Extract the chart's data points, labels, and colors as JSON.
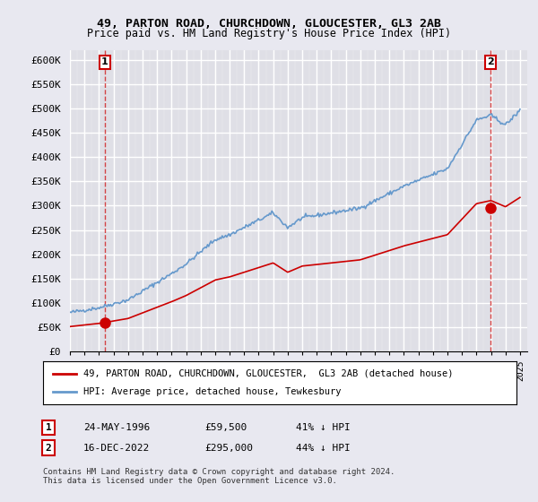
{
  "title1": "49, PARTON ROAD, CHURCHDOWN, GLOUCESTER, GL3 2AB",
  "title2": "Price paid vs. HM Land Registry's House Price Index (HPI)",
  "ylabel_ticks": [
    "£0",
    "£50K",
    "£100K",
    "£150K",
    "£200K",
    "£250K",
    "£300K",
    "£350K",
    "£400K",
    "£450K",
    "£500K",
    "£550K",
    "£600K"
  ],
  "ylabel_values": [
    0,
    50000,
    100000,
    150000,
    200000,
    250000,
    300000,
    350000,
    400000,
    450000,
    500000,
    550000,
    600000
  ],
  "ylim": [
    0,
    620000
  ],
  "xlim_start": 1994.0,
  "xlim_end": 2025.5,
  "hpi_color": "#6699cc",
  "price_color": "#cc0000",
  "bg_color": "#e8e8f0",
  "plot_bg": "#f0f0f8",
  "grid_color": "#ffffff",
  "transaction1_x": 1996.39,
  "transaction1_y": 59500,
  "transaction2_x": 2022.96,
  "transaction2_y": 295000,
  "legend_line1": "49, PARTON ROAD, CHURCHDOWN, GLOUCESTER,  GL3 2AB (detached house)",
  "legend_line2": "HPI: Average price, detached house, Tewkesbury",
  "table_row1": [
    "1",
    "24-MAY-1996",
    "£59,500",
    "41% ↓ HPI"
  ],
  "table_row2": [
    "2",
    "16-DEC-2022",
    "£295,000",
    "44% ↓ HPI"
  ],
  "footnote": "Contains HM Land Registry data © Crown copyright and database right 2024.\nThis data is licensed under the Open Government Licence v3.0."
}
